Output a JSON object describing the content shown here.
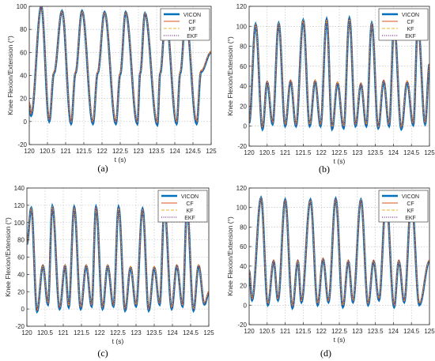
{
  "chart_data": [
    {
      "id": "a",
      "type": "line",
      "caption": "(a)",
      "xlabel": "t (s)",
      "ylabel": "Knee Flexion/Extension (°)",
      "xlim": [
        120,
        125
      ],
      "ylim": [
        -20,
        100
      ],
      "xticks": [
        "120",
        "120.5",
        "121",
        "121.5",
        "122",
        "122.5",
        "123",
        "123.5",
        "124",
        "124.5",
        "125"
      ],
      "yticks": [
        "-20",
        "0",
        "20",
        "40",
        "60",
        "80",
        "100"
      ],
      "grid": true,
      "legend_position": "top-right",
      "series": [
        {
          "name": "VICON",
          "color": "#0072BD"
        },
        {
          "name": "CF",
          "color": "#D95319"
        },
        {
          "name": "KF",
          "color": "#EDB120"
        },
        {
          "name": "EKF",
          "color": "#7E2F8E"
        }
      ],
      "peaks": {
        "x": [
          120.33,
          120.9,
          121.45,
          122.07,
          122.65,
          123.18,
          123.75,
          124.3
        ],
        "y": [
          100,
          96,
          96,
          95,
          95,
          94,
          92,
          91
        ]
      },
      "troughs": {
        "x": [
          120.05,
          120.55,
          121.15,
          121.75,
          122.38,
          122.97,
          123.52,
          124.05,
          124.6,
          125.0
        ],
        "y": [
          5,
          0,
          -2,
          -2,
          -2,
          -2,
          -3,
          -2,
          -2,
          5
        ]
      },
      "mid_peaks": {
        "x": [
          120.68,
          121.27,
          121.88,
          122.5,
          123.05,
          123.6,
          124.15,
          124.72
        ],
        "y": [
          42,
          42,
          42,
          41,
          42,
          42,
          42,
          43
        ]
      },
      "x_start": 120.0,
      "y_start": 15,
      "x_end": 125.0,
      "y_end": 60
    },
    {
      "id": "b",
      "type": "line",
      "caption": "(b)",
      "xlabel": "t (s)",
      "ylabel": "Knee Flexion/Extension (°)",
      "xlim": [
        120,
        125
      ],
      "ylim": [
        -20,
        120
      ],
      "xticks": [
        "120",
        "120.5",
        "121",
        "121.5",
        "122",
        "122.5",
        "123",
        "123.5",
        "124",
        "124.5",
        "125"
      ],
      "yticks": [
        "-20",
        "0",
        "20",
        "40",
        "60",
        "80",
        "100",
        "120"
      ],
      "grid": true,
      "legend_position": "top-right",
      "series": [
        {
          "name": "VICON",
          "color": "#0072BD"
        },
        {
          "name": "CF",
          "color": "#D95319"
        },
        {
          "name": "KF",
          "color": "#EDB120"
        },
        {
          "name": "EKF",
          "color": "#7E2F8E"
        }
      ],
      "peaks": {
        "x": [
          120.18,
          120.82,
          121.5,
          122.15,
          122.78,
          123.4,
          124.02,
          124.68
        ],
        "y": [
          102,
          103,
          106,
          107,
          108,
          103,
          102,
          102
        ]
      },
      "troughs": {
        "x": [
          120.0,
          120.37,
          120.65,
          121.0,
          121.3,
          121.68,
          121.98,
          122.3,
          122.62,
          122.95,
          123.25,
          123.58,
          123.88,
          124.22,
          124.55,
          124.88
        ],
        "y": [
          3,
          -3,
          2,
          0,
          0,
          0,
          0,
          -3,
          -2,
          0,
          0,
          -2,
          0,
          -3,
          1,
          2
        ]
      },
      "mid_peaks": {
        "x": [
          120.5,
          121.15,
          121.83,
          122.45,
          123.1,
          123.73,
          124.38
        ],
        "y": [
          44,
          45,
          45,
          43,
          42,
          45,
          44
        ]
      },
      "x_start": 120.0,
      "y_start": 5,
      "x_end": 125.0,
      "y_end": 62
    },
    {
      "id": "c",
      "type": "line",
      "caption": "(c)",
      "xlabel": "t (s)",
      "ylabel": "Knee Flexion/Extension (°)",
      "xlim": [
        120,
        125
      ],
      "ylim": [
        -20,
        140
      ],
      "xticks": [
        "120",
        "120.5",
        "121",
        "121.5",
        "122",
        "122.5",
        "123",
        "123.5",
        "124",
        "124.5",
        "125"
      ],
      "yticks": [
        "-20",
        "0",
        "20",
        "40",
        "60",
        "80",
        "100",
        "120",
        "140"
      ],
      "grid": true,
      "legend_position": "top-right",
      "series": [
        {
          "name": "VICON",
          "color": "#0072BD"
        },
        {
          "name": "CF",
          "color": "#D95319"
        },
        {
          "name": "KF",
          "color": "#EDB120"
        },
        {
          "name": "EKF",
          "color": "#7E2F8E"
        }
      ],
      "peaks": {
        "x": [
          120.12,
          120.7,
          121.3,
          121.9,
          122.52,
          123.18,
          123.78,
          124.4
        ],
        "y": [
          117,
          119,
          118,
          118,
          118,
          116,
          117,
          116
        ]
      },
      "troughs": {
        "x": [
          120.28,
          120.58,
          120.9,
          121.15,
          121.48,
          121.78,
          122.08,
          122.38,
          122.7,
          123.0,
          123.35,
          123.65,
          123.98,
          124.28,
          124.58,
          124.88
        ],
        "y": [
          -3,
          5,
          0,
          2,
          0,
          3,
          0,
          3,
          -2,
          3,
          -2,
          5,
          0,
          3,
          -2,
          5
        ]
      },
      "mid_peaks": {
        "x": [
          120.44,
          121.05,
          121.63,
          122.22,
          122.85,
          123.5,
          124.12,
          124.72
        ],
        "y": [
          50,
          50,
          50,
          50,
          48,
          48,
          50,
          50
        ]
      },
      "x_start": 120.0,
      "y_start": 75,
      "x_end": 125.0,
      "y_end": 18
    },
    {
      "id": "d",
      "type": "line",
      "caption": "(d)",
      "xlabel": "t (s)",
      "ylabel": "Knee Flexion/Extension (°)",
      "xlim": [
        120,
        125
      ],
      "ylim": [
        -20,
        120
      ],
      "xticks": [
        "120",
        "120.5",
        "121",
        "121.5",
        "122",
        "122.5",
        "123",
        "123.5",
        "124",
        "124.5",
        "125"
      ],
      "yticks": [
        "-20",
        "0",
        "20",
        "40",
        "60",
        "80",
        "100",
        "120"
      ],
      "grid": true,
      "legend_position": "top-right",
      "series": [
        {
          "name": "VICON",
          "color": "#0072BD"
        },
        {
          "name": "CF",
          "color": "#D95319"
        },
        {
          "name": "KF",
          "color": "#EDB120"
        },
        {
          "name": "EKF",
          "color": "#7E2F8E"
        }
      ],
      "peaks": {
        "x": [
          120.33,
          121.0,
          121.7,
          122.4,
          123.1,
          123.8,
          124.5
        ],
        "y": [
          110,
          108,
          108,
          109,
          108,
          110,
          108
        ]
      },
      "troughs": {
        "x": [
          120.08,
          120.52,
          120.8,
          121.2,
          121.45,
          121.9,
          122.2,
          122.6,
          122.88,
          123.3,
          123.6,
          124.02,
          124.3,
          124.72
        ],
        "y": [
          5,
          0,
          5,
          -3,
          3,
          0,
          3,
          -2,
          3,
          0,
          5,
          -2,
          3,
          0
        ]
      },
      "mid_peaks": {
        "x": [
          120.68,
          121.35,
          122.05,
          122.75,
          123.45,
          124.15
        ],
        "y": [
          45,
          45,
          47,
          45,
          45,
          45
        ]
      },
      "x_start": 120.0,
      "y_start": 35,
      "x_end": 125.0,
      "y_end": 45
    }
  ]
}
